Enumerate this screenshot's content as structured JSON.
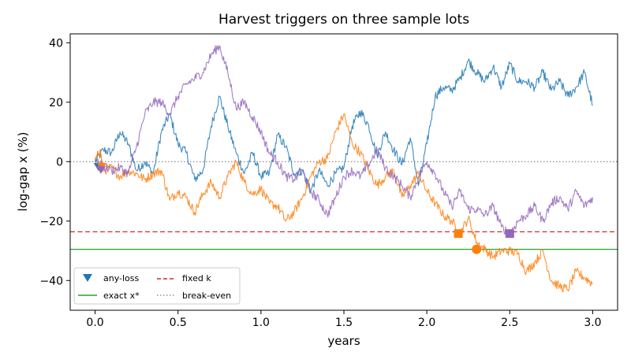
{
  "chart_data": {
    "type": "line",
    "title": "Harvest triggers on three sample lots",
    "xlabel": "years",
    "ylabel": "log-gap x (%)",
    "xlim": [
      -0.15,
      3.15
    ],
    "ylim": [
      -50,
      43
    ],
    "xticks": [
      0.0,
      0.5,
      1.0,
      1.5,
      2.0,
      2.5,
      3.0
    ],
    "xtick_labels": [
      "0.0",
      "0.5",
      "1.0",
      "1.5",
      "2.0",
      "2.5",
      "3.0"
    ],
    "yticks": [
      -40,
      -20,
      0,
      20,
      40
    ],
    "ytick_labels": [
      "−40",
      "−20",
      "0",
      "20",
      "40"
    ],
    "grid": false,
    "legend": {
      "position": "lower-left",
      "entries": [
        {
          "label": "any-loss",
          "style": "triangle-marker"
        },
        {
          "label": "exact x*",
          "style": "solid-line"
        },
        {
          "label": "fixed k",
          "style": "dashed-line"
        },
        {
          "label": "break-even",
          "style": "dotted-line"
        }
      ]
    },
    "reference_lines": [
      {
        "label": "exact x*",
        "y": -29.5,
        "color": "#2ca02c",
        "style": "solid"
      },
      {
        "label": "fixed k",
        "y": -23.6,
        "color": "#d62728",
        "style": "dashed"
      },
      {
        "label": "break-even",
        "y": 0,
        "color": "#7f7f7f",
        "style": "dotted"
      }
    ],
    "series": [
      {
        "color": "#1f77b4",
        "points": [
          [
            0.0,
            0
          ],
          [
            0.05,
            4
          ],
          [
            0.1,
            3
          ],
          [
            0.15,
            10
          ],
          [
            0.2,
            6
          ],
          [
            0.25,
            -3
          ],
          [
            0.3,
            0
          ],
          [
            0.35,
            -4
          ],
          [
            0.4,
            10
          ],
          [
            0.45,
            16
          ],
          [
            0.5,
            6
          ],
          [
            0.55,
            3
          ],
          [
            0.6,
            -6
          ],
          [
            0.65,
            -3
          ],
          [
            0.7,
            12
          ],
          [
            0.75,
            22
          ],
          [
            0.8,
            12
          ],
          [
            0.85,
            3
          ],
          [
            0.9,
            -4
          ],
          [
            0.95,
            3
          ],
          [
            1.0,
            -5
          ],
          [
            1.05,
            -4
          ],
          [
            1.1,
            9
          ],
          [
            1.15,
            5
          ],
          [
            1.2,
            -4
          ],
          [
            1.25,
            -3
          ],
          [
            1.3,
            -10
          ],
          [
            1.35,
            -3
          ],
          [
            1.4,
            -8
          ],
          [
            1.45,
            -4
          ],
          [
            1.5,
            -2
          ],
          [
            1.55,
            12
          ],
          [
            1.6,
            17
          ],
          [
            1.65,
            12
          ],
          [
            1.7,
            2
          ],
          [
            1.75,
            10
          ],
          [
            1.8,
            4
          ],
          [
            1.85,
            -1
          ],
          [
            1.9,
            8
          ],
          [
            1.95,
            -8
          ],
          [
            2.0,
            6
          ],
          [
            2.05,
            22
          ],
          [
            2.1,
            25
          ],
          [
            2.15,
            24
          ],
          [
            2.2,
            28
          ],
          [
            2.25,
            34
          ],
          [
            2.3,
            30
          ],
          [
            2.35,
            27
          ],
          [
            2.4,
            32
          ],
          [
            2.45,
            25
          ],
          [
            2.5,
            33
          ],
          [
            2.55,
            27
          ],
          [
            2.6,
            27
          ],
          [
            2.65,
            25
          ],
          [
            2.7,
            30
          ],
          [
            2.75,
            24
          ],
          [
            2.8,
            27
          ],
          [
            2.85,
            22
          ],
          [
            2.9,
            25
          ],
          [
            2.95,
            30
          ],
          [
            3.0,
            19
          ]
        ]
      },
      {
        "color": "#ff7f0e",
        "points": [
          [
            0.0,
            0
          ],
          [
            0.03,
            4
          ],
          [
            0.05,
            -3
          ],
          [
            0.1,
            -2
          ],
          [
            0.15,
            -5
          ],
          [
            0.2,
            -3
          ],
          [
            0.25,
            -4
          ],
          [
            0.3,
            -6
          ],
          [
            0.35,
            -4
          ],
          [
            0.4,
            -3
          ],
          [
            0.45,
            -13
          ],
          [
            0.5,
            -10
          ],
          [
            0.55,
            -12
          ],
          [
            0.6,
            -17
          ],
          [
            0.65,
            -11
          ],
          [
            0.7,
            -7
          ],
          [
            0.75,
            -12
          ],
          [
            0.8,
            -5
          ],
          [
            0.85,
            0
          ],
          [
            0.9,
            -7
          ],
          [
            0.95,
            -11
          ],
          [
            1.0,
            -9
          ],
          [
            1.05,
            -14
          ],
          [
            1.1,
            -15
          ],
          [
            1.15,
            -20
          ],
          [
            1.2,
            -17
          ],
          [
            1.25,
            -12
          ],
          [
            1.3,
            -5
          ],
          [
            1.35,
            0
          ],
          [
            1.4,
            1
          ],
          [
            1.45,
            10
          ],
          [
            1.5,
            16
          ],
          [
            1.55,
            6
          ],
          [
            1.6,
            3
          ],
          [
            1.65,
            -3
          ],
          [
            1.7,
            -8
          ],
          [
            1.75,
            -5
          ],
          [
            1.8,
            -3
          ],
          [
            1.85,
            -12
          ],
          [
            1.9,
            -8
          ],
          [
            1.95,
            -4
          ],
          [
            2.0,
            -10
          ],
          [
            2.05,
            -14
          ],
          [
            2.1,
            -18
          ],
          [
            2.15,
            -20
          ],
          [
            2.2,
            -24.2
          ],
          [
            2.25,
            -19
          ],
          [
            2.3,
            -27
          ],
          [
            2.35,
            -29.5
          ],
          [
            2.4,
            -32
          ],
          [
            2.45,
            -30
          ],
          [
            2.5,
            -30
          ],
          [
            2.55,
            -31
          ],
          [
            2.6,
            -37
          ],
          [
            2.65,
            -34
          ],
          [
            2.7,
            -30
          ],
          [
            2.75,
            -40
          ],
          [
            2.8,
            -42
          ],
          [
            2.85,
            -43
          ],
          [
            2.9,
            -37
          ],
          [
            2.95,
            -39
          ],
          [
            3.0,
            -41
          ]
        ]
      },
      {
        "color": "#9467bd",
        "points": [
          [
            0.0,
            0
          ],
          [
            0.03,
            -1
          ],
          [
            0.1,
            -3
          ],
          [
            0.15,
            -2
          ],
          [
            0.2,
            -4
          ],
          [
            0.25,
            5
          ],
          [
            0.3,
            16
          ],
          [
            0.35,
            20
          ],
          [
            0.4,
            20
          ],
          [
            0.45,
            16
          ],
          [
            0.5,
            22
          ],
          [
            0.55,
            26
          ],
          [
            0.6,
            28
          ],
          [
            0.65,
            30
          ],
          [
            0.7,
            36
          ],
          [
            0.75,
            39
          ],
          [
            0.8,
            30
          ],
          [
            0.85,
            18
          ],
          [
            0.9,
            20
          ],
          [
            0.95,
            15
          ],
          [
            1.0,
            10
          ],
          [
            1.05,
            3
          ],
          [
            1.1,
            0
          ],
          [
            1.15,
            -5
          ],
          [
            1.2,
            -6
          ],
          [
            1.25,
            -3
          ],
          [
            1.3,
            -10
          ],
          [
            1.35,
            -13
          ],
          [
            1.4,
            -18
          ],
          [
            1.45,
            -12
          ],
          [
            1.5,
            -5
          ],
          [
            1.55,
            -3
          ],
          [
            1.6,
            -5
          ],
          [
            1.65,
            -1
          ],
          [
            1.7,
            4
          ],
          [
            1.75,
            -2
          ],
          [
            1.8,
            -5
          ],
          [
            1.85,
            -8
          ],
          [
            1.9,
            -12
          ],
          [
            1.95,
            -5
          ],
          [
            2.0,
            0
          ],
          [
            2.05,
            -4
          ],
          [
            2.1,
            -10
          ],
          [
            2.15,
            -15
          ],
          [
            2.2,
            -10
          ],
          [
            2.25,
            -16
          ],
          [
            2.3,
            -16
          ],
          [
            2.35,
            -18
          ],
          [
            2.4,
            -15
          ],
          [
            2.45,
            -22
          ],
          [
            2.5,
            -24.2
          ],
          [
            2.55,
            -20
          ],
          [
            2.6,
            -18
          ],
          [
            2.65,
            -15
          ],
          [
            2.7,
            -20
          ],
          [
            2.75,
            -14
          ],
          [
            2.8,
            -12
          ],
          [
            2.85,
            -16
          ],
          [
            2.9,
            -10
          ],
          [
            2.95,
            -15
          ],
          [
            3.0,
            -12
          ]
        ]
      }
    ],
    "markers": [
      {
        "kind": "triangle",
        "legend": "any-loss",
        "x": 0.02,
        "y": -1.5,
        "color": "#1f77b4"
      },
      {
        "kind": "triangle",
        "legend": "any-loss",
        "x": 0.04,
        "y": -1.5,
        "color": "#ff7f0e"
      },
      {
        "kind": "triangle",
        "legend": "any-loss",
        "x": 0.035,
        "y": -2.5,
        "color": "#9467bd"
      },
      {
        "kind": "square",
        "legend": "fixed k",
        "x": 2.19,
        "y": -24.2,
        "color": "#ff7f0e"
      },
      {
        "kind": "square",
        "legend": "fixed k",
        "x": 2.5,
        "y": -24.2,
        "color": "#9467bd"
      },
      {
        "kind": "circle",
        "legend": "exact x*",
        "x": 2.3,
        "y": -29.5,
        "color": "#ff7f0e"
      }
    ]
  }
}
